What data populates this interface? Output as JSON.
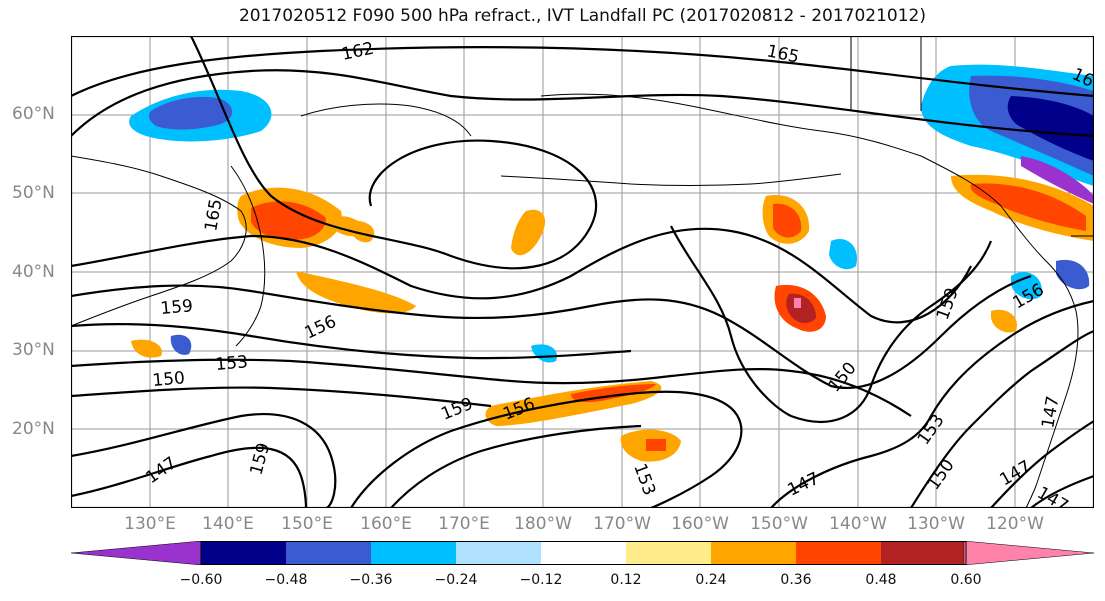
{
  "title": "2017020512 F090 500 hPa refract., IVT Landfall PC (2017020812 - 2017021012)",
  "lat_labels": [
    "60°N",
    "50°N",
    "40°N",
    "30°N",
    "20°N"
  ],
  "lon_labels": [
    "130°E",
    "140°E",
    "150°E",
    "160°E",
    "170°E",
    "180°W",
    "170°W",
    "160°W",
    "150°W",
    "140°W",
    "130°W",
    "120°W"
  ],
  "contour_labels": [
    "162",
    "165",
    "16",
    "165",
    "159",
    "156",
    "153",
    "150",
    "147",
    "159",
    "159",
    "156",
    "150",
    "147",
    "153",
    "153",
    "150",
    "147",
    "147",
    "147",
    "159",
    "156"
  ],
  "colorbar": {
    "ticks": [
      "−0.60",
      "−0.48",
      "−0.36",
      "−0.24",
      "−0.12",
      "0.12",
      "0.24",
      "0.36",
      "0.48",
      "0.60"
    ],
    "colors": [
      "#9a32cd",
      "#00008b",
      "#3b5bd1",
      "#00bfff",
      "#b0e2ff",
      "#ffffff",
      "#ffec8b",
      "#ffa500",
      "#ff4500",
      "#b22222",
      "#ff82ab"
    ]
  }
}
